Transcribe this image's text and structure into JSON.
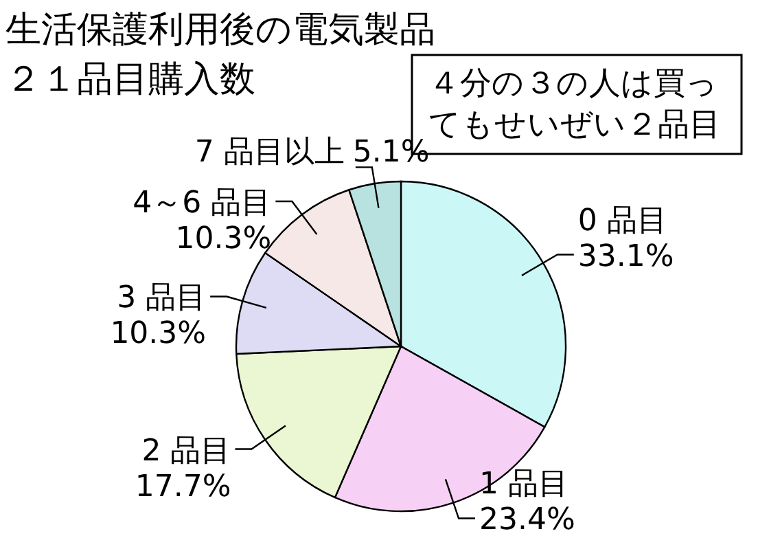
{
  "chart_data": {
    "type": "pie",
    "title": "生活保護利用後の電気製品",
    "subtitle": "２１品目購入数",
    "categories": [
      "0 品目",
      "1 品目",
      "2 品目",
      "3 品目",
      "4～6 品目",
      "7 品目以上"
    ],
    "values": [
      33.1,
      23.4,
      17.7,
      10.3,
      10.3,
      5.1
    ],
    "value_labels": [
      "33.1%",
      "23.4%",
      "17.7%",
      "10.3%",
      "10.3%",
      "5.1%"
    ],
    "colors": [
      "#ccf7f7",
      "#f7d0f5",
      "#eaf7d2",
      "#dedcf5",
      "#f7e8e8",
      "#b8e2e0"
    ],
    "annotations": [
      "４分の３の人は買ってもせいぜい２品目"
    ]
  }
}
